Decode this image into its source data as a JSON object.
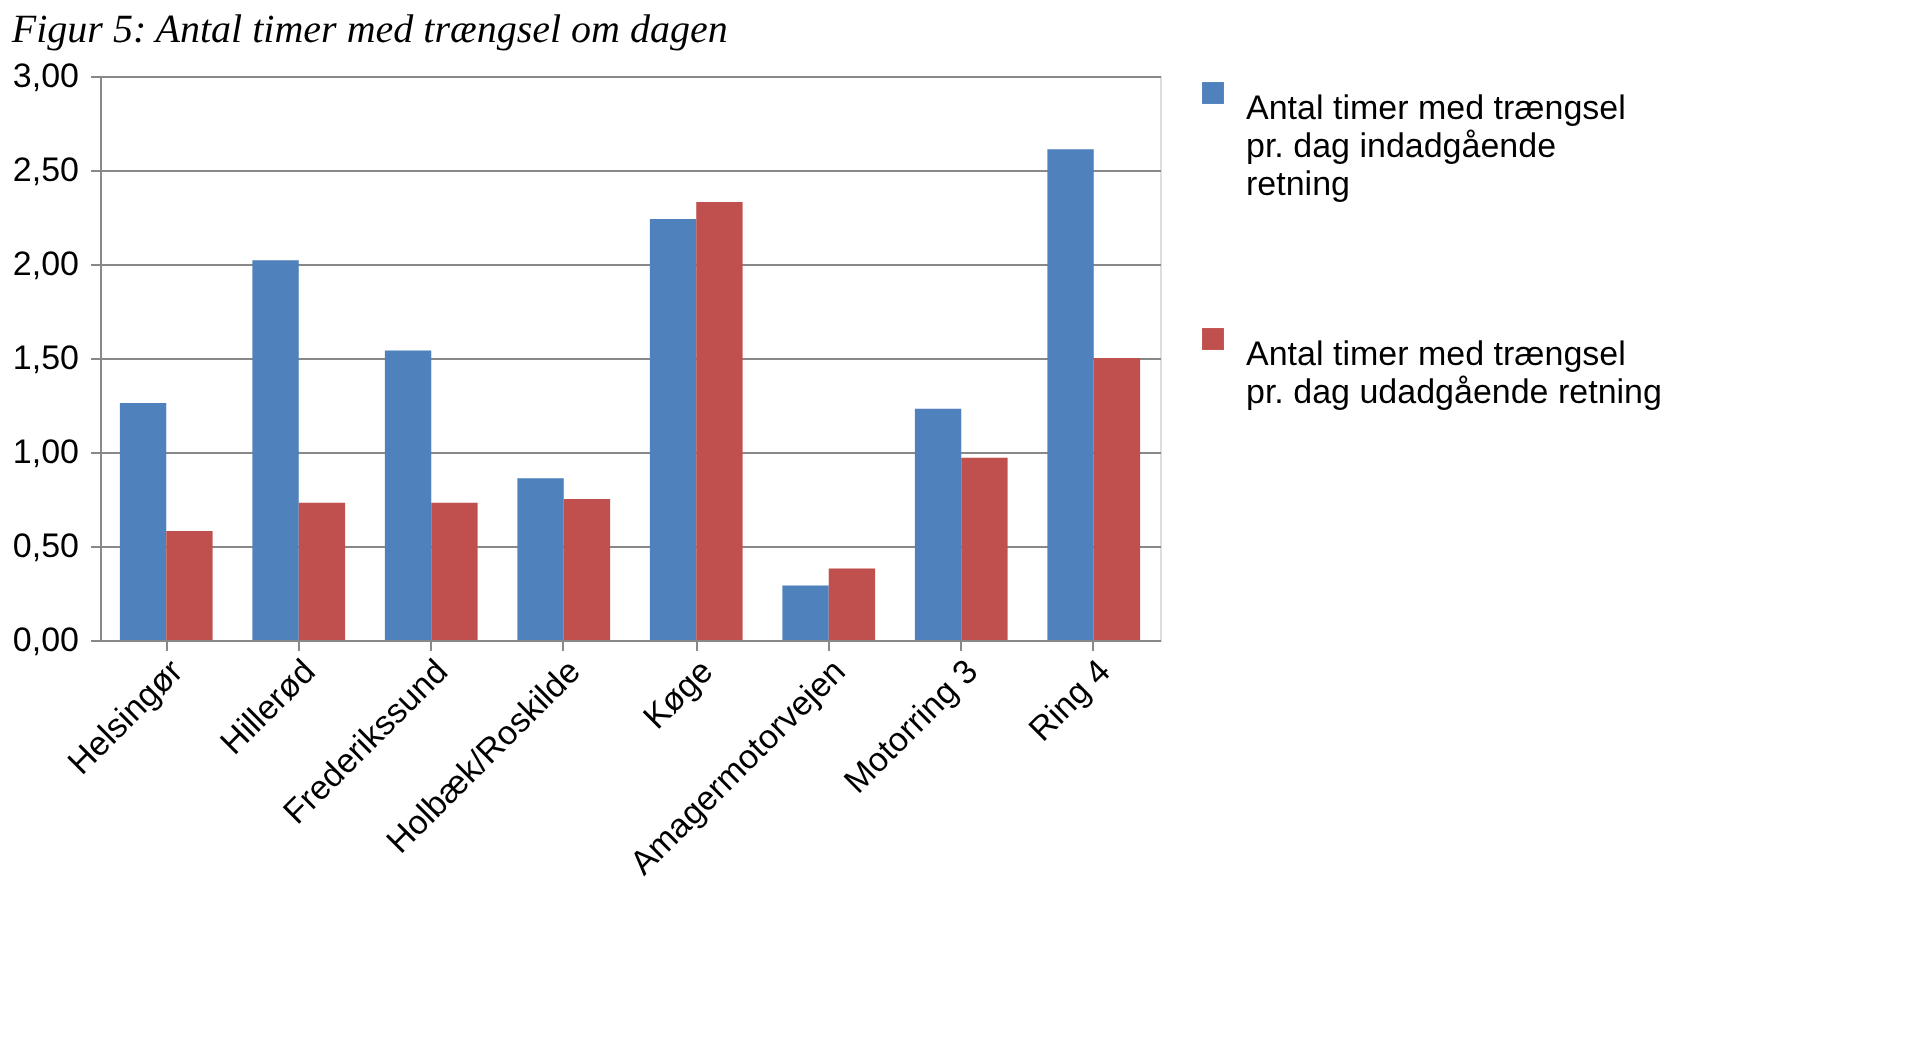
{
  "chart_data": {
    "type": "bar",
    "title": "Figur 5: Antal timer med trængsel om dagen",
    "categories": [
      "Helsingør",
      "Hillerød",
      "Frederikssund",
      "Holbæk/Roskilde",
      "Køge",
      "Amagermotorvejen",
      "Motorring 3",
      "Ring 4"
    ],
    "series": [
      {
        "name": "Antal timer med trængsel pr. dag indadgående retning",
        "color": "#4f81bd",
        "values": [
          1.26,
          2.02,
          1.54,
          0.86,
          2.24,
          0.29,
          1.23,
          2.61
        ]
      },
      {
        "name": "Antal timer med trængsel pr. dag udadgående retning",
        "color": "#c0504d",
        "values": [
          0.58,
          0.73,
          0.73,
          0.75,
          2.33,
          0.38,
          0.97,
          1.5
        ]
      }
    ],
    "ylim": [
      0,
      3
    ],
    "yticks": [
      {
        "value": 0,
        "label": "0,00"
      },
      {
        "value": 0.5,
        "label": "0,50"
      },
      {
        "value": 1,
        "label": "1,00"
      },
      {
        "value": 1.5,
        "label": "1,50"
      },
      {
        "value": 2,
        "label": "2,00"
      },
      {
        "value": 2.5,
        "label": "2,50"
      },
      {
        "value": 3,
        "label": "3,00"
      }
    ],
    "grid": "y",
    "legend": "right"
  }
}
